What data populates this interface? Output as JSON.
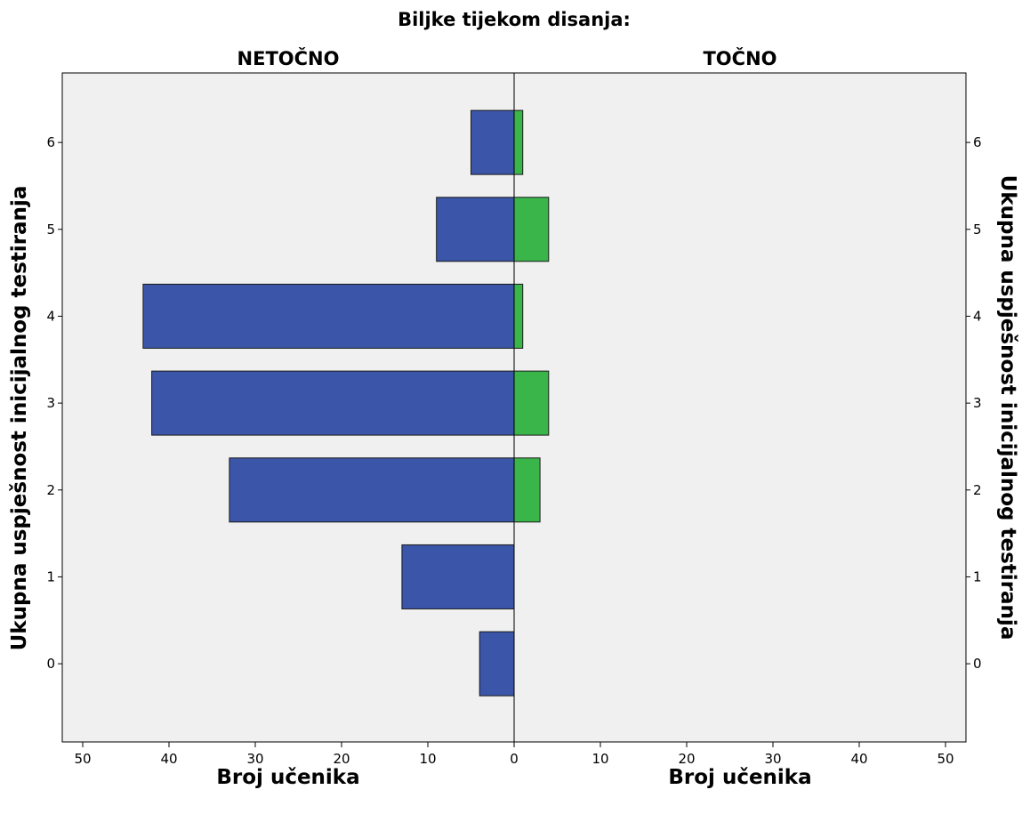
{
  "chart_data": {
    "type": "bar",
    "orientation": "horizontal",
    "layout": "back-to-back",
    "title": "Biljke tijekom disanja:",
    "panels": [
      {
        "label": "NETOČNO",
        "side": "left",
        "color": "#3b55a8",
        "xlabel": "Broj učenika"
      },
      {
        "label": "TOČNO",
        "side": "right",
        "color": "#39b54a",
        "xlabel": "Broj učenika"
      }
    ],
    "ylabel": "Ukupna uspješnost inicijalnog testiranja",
    "categories": [
      0,
      1,
      2,
      3,
      4,
      5,
      6
    ],
    "series": [
      {
        "name": "NETOČNO",
        "values": [
          4,
          13,
          33,
          42,
          43,
          9,
          5
        ]
      },
      {
        "name": "TOČNO",
        "values": [
          0,
          0,
          3,
          4,
          1,
          4,
          1
        ]
      }
    ],
    "xlim": [
      0,
      50
    ],
    "xticks": [
      50,
      40,
      30,
      20,
      10,
      0,
      10,
      20,
      30,
      40,
      50
    ],
    "ylim": [
      -0.9,
      6.8
    ],
    "yticks": [
      0,
      1,
      2,
      3,
      4,
      5,
      6
    ],
    "background_color": "#f0f0f0",
    "grid": false
  }
}
